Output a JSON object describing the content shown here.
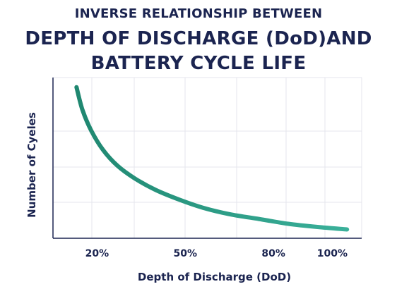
{
  "title": {
    "line1": "INVERSE RELATIONSHIP BETWEEN",
    "line2": "DEPTH OF DISCHARGE (DoD)AND",
    "line3": "BATTERY CYCLE LIFE"
  },
  "chart_data": {
    "type": "line",
    "xlabel": "Depth of Discharge (DoD)",
    "ylabel": "Number of Cyeles",
    "x_ticks": [
      {
        "value": 20,
        "label": "20%"
      },
      {
        "value": 50,
        "label": "50%"
      },
      {
        "value": 80,
        "label": "80%"
      },
      {
        "value": 100,
        "label": "100%"
      }
    ],
    "xlim": [
      5,
      110
    ],
    "ylim": [
      0,
      1
    ],
    "y_ticks_labeled": false,
    "grid": true,
    "series": [
      {
        "color": "#2a9b86",
        "x": [
          13,
          15,
          18,
          22,
          27,
          33,
          40,
          48,
          56,
          65,
          75,
          85,
          95,
          105
        ],
        "y": [
          0.94,
          0.8,
          0.67,
          0.55,
          0.45,
          0.37,
          0.3,
          0.24,
          0.19,
          0.15,
          0.12,
          0.09,
          0.07,
          0.055
        ]
      }
    ]
  }
}
